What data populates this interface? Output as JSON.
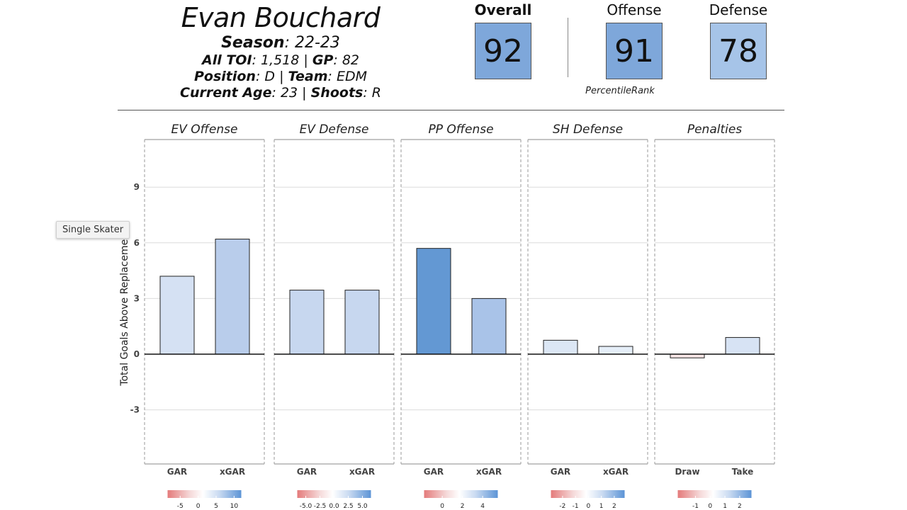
{
  "player": {
    "name": "Evan Bouchard",
    "season_key": "Season",
    "season_val": ": 22-23",
    "toi_key": "All TOI",
    "toi_val": ": 1,518 | ",
    "gp_key": "GP",
    "gp_val": ": 82",
    "position_key": "Position",
    "position_val": ": D | ",
    "team_key": "Team",
    "team_val": ": EDM",
    "age_key": "Current Age",
    "age_val": ": 23 | ",
    "shoots_key": "Shoots",
    "shoots_val": ": R"
  },
  "ratings": {
    "overall_label": "Overall",
    "overall_value": "92",
    "offense_label": "Offense",
    "offense_value": "91",
    "defense_label": "Defense",
    "defense_value": "78",
    "percentile_label": "PercentileRank",
    "box_colors": {
      "overall": "#7ea7da",
      "offense": "#7ea7da",
      "defense": "#a6c4e8"
    }
  },
  "tooltip": {
    "text": "Single Skater"
  },
  "chart_data": {
    "type": "bar",
    "ylabel": "Total Goals Above Replacement",
    "ylim": [
      -6.3,
      11.4
    ],
    "yticks": [
      -3,
      0,
      3,
      6,
      9
    ],
    "grid": true,
    "panels": [
      {
        "title": "EV Offense",
        "categories": [
          "GAR",
          "xGAR"
        ],
        "values": [
          4.2,
          6.2
        ],
        "colors": [
          "#d5e1f3",
          "#b9cdeb"
        ],
        "legend": {
          "ticks": [
            "-5",
            "0",
            "5",
            "10"
          ],
          "domain": [
            -8.5,
            12
          ]
        }
      },
      {
        "title": "EV Defense",
        "categories": [
          "GAR",
          "xGAR"
        ],
        "values": [
          3.45,
          3.45
        ],
        "colors": [
          "#c7d7ef",
          "#c7d7ef"
        ],
        "legend": {
          "ticks": [
            "-5.0",
            "-2.5",
            "0.0",
            "2.5",
            "5.0"
          ],
          "domain": [
            -6.5,
            6.5
          ]
        }
      },
      {
        "title": "PP Offense",
        "categories": [
          "GAR",
          "xGAR"
        ],
        "values": [
          5.7,
          3.0
        ],
        "colors": [
          "#6398d3",
          "#a9c3e8"
        ],
        "legend": {
          "ticks": [
            "0",
            "2",
            "4"
          ],
          "domain": [
            -1.8,
            5.5
          ]
        }
      },
      {
        "title": "SH Defense",
        "categories": [
          "GAR",
          "xGAR"
        ],
        "values": [
          0.75,
          0.42
        ],
        "colors": [
          "#dce7f5",
          "#e5eef8"
        ],
        "legend": {
          "ticks": [
            "-2",
            "-1",
            "0",
            "1",
            "2"
          ],
          "domain": [
            -2.9,
            2.8
          ]
        }
      },
      {
        "title": "Penalties",
        "categories": [
          "Draw",
          "Take"
        ],
        "values": [
          -0.2,
          0.9
        ],
        "colors": [
          "#f6e5e5",
          "#d7e3f4"
        ],
        "legend": {
          "ticks": [
            "-1",
            "0",
            "1",
            "2"
          ],
          "domain": [
            -2.2,
            2.8
          ]
        }
      }
    ]
  }
}
